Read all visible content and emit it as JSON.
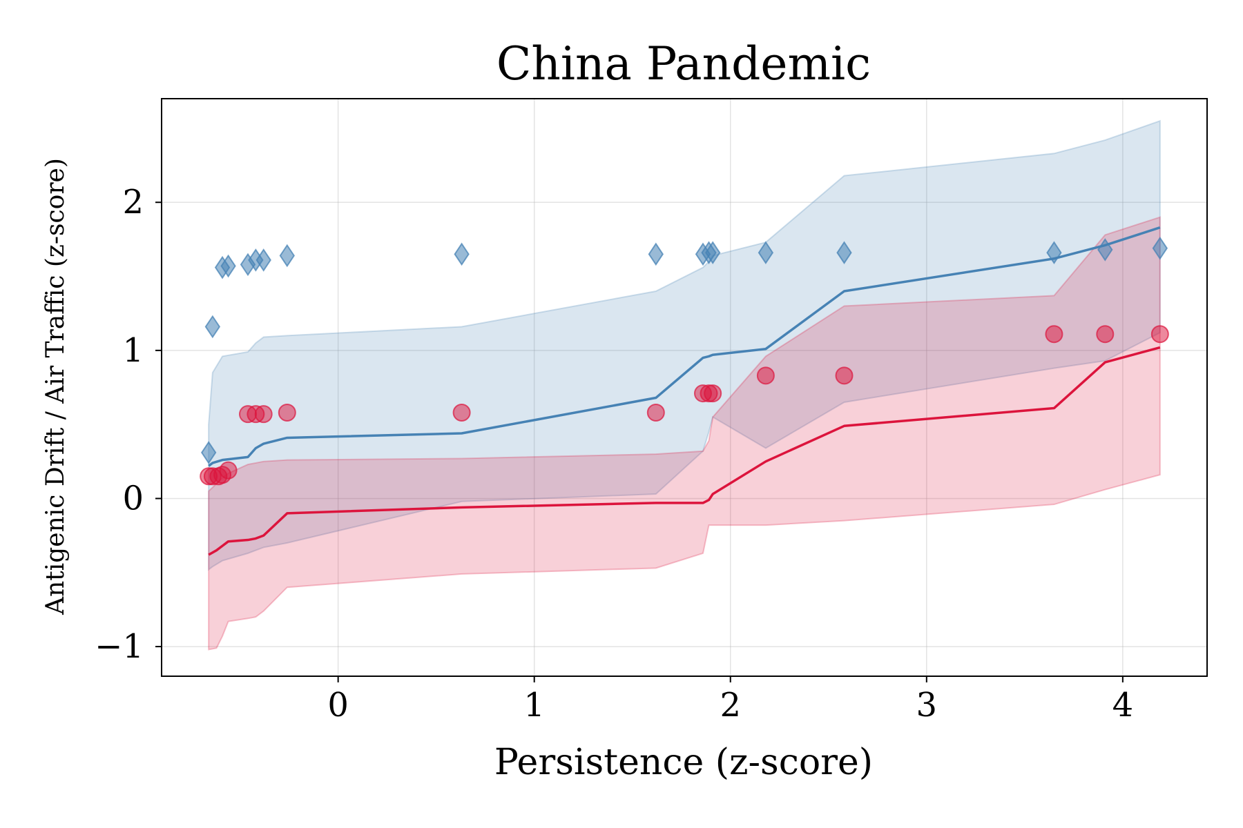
{
  "chart_data": {
    "type": "line",
    "title": "China Pandemic",
    "xlabel": "Persistence (z-score)",
    "ylabel": "Antigenic Drift / Air Traffic (z-score)",
    "xlim": [
      -0.9,
      4.43
    ],
    "ylim": [
      -1.2,
      2.7
    ],
    "grid": true,
    "x_ticks": [
      0,
      1,
      2,
      3,
      4
    ],
    "y_ticks": [
      -1,
      0,
      1,
      2
    ],
    "x_tick_labels": [
      "0",
      "1",
      "2",
      "3",
      "4"
    ],
    "y_tick_labels": [
      "−1",
      "0",
      "1",
      "2"
    ],
    "series": [
      {
        "name": "Antigenic Drift",
        "color": "#4682b4",
        "marker": "diamond",
        "points_x": [
          -0.66,
          -0.64,
          -0.59,
          -0.56,
          -0.46,
          -0.42,
          -0.38,
          -0.26,
          0.63,
          1.62,
          1.86,
          1.89,
          1.91,
          2.18,
          2.58,
          3.65,
          3.91,
          4.19
        ],
        "points_y": [
          0.31,
          1.16,
          1.56,
          1.57,
          1.58,
          1.61,
          1.61,
          1.64,
          1.65,
          1.65,
          1.65,
          1.66,
          1.66,
          1.66,
          1.66,
          1.66,
          1.68,
          1.69
        ],
        "fit_x": [
          -0.66,
          -0.64,
          -0.59,
          -0.46,
          -0.42,
          -0.38,
          -0.26,
          0.63,
          1.62,
          1.86,
          1.89,
          1.91,
          2.18,
          2.58,
          3.65,
          3.91,
          4.19
        ],
        "fit_y": [
          0.22,
          0.24,
          0.26,
          0.28,
          0.34,
          0.37,
          0.41,
          0.44,
          0.68,
          0.95,
          0.96,
          0.97,
          1.01,
          1.4,
          1.62,
          1.71,
          1.83
        ],
        "band_lower": [
          -0.48,
          -0.46,
          -0.42,
          -0.37,
          -0.35,
          -0.33,
          -0.3,
          -0.02,
          0.03,
          0.32,
          0.45,
          0.55,
          0.34,
          0.65,
          0.88,
          0.93,
          1.12
        ],
        "band_upper": [
          0.5,
          0.85,
          0.96,
          0.99,
          1.05,
          1.09,
          1.1,
          1.16,
          1.4,
          1.56,
          1.6,
          1.64,
          1.73,
          2.18,
          2.33,
          2.42,
          2.55
        ]
      },
      {
        "name": "Air Traffic",
        "color": "#dc143c",
        "marker": "circle",
        "points_x": [
          -0.66,
          -0.64,
          -0.61,
          -0.59,
          -0.56,
          -0.46,
          -0.42,
          -0.38,
          -0.26,
          0.63,
          1.62,
          1.86,
          1.89,
          1.91,
          2.18,
          2.58,
          3.65,
          3.91,
          4.19
        ],
        "points_y": [
          0.15,
          0.15,
          0.15,
          0.16,
          0.19,
          0.57,
          0.57,
          0.57,
          0.58,
          0.58,
          0.58,
          0.71,
          0.71,
          0.71,
          0.83,
          0.83,
          1.11,
          1.11,
          1.11
        ],
        "fit_x": [
          -0.66,
          -0.62,
          -0.59,
          -0.56,
          -0.46,
          -0.42,
          -0.38,
          -0.26,
          0.63,
          1.62,
          1.86,
          1.89,
          1.91,
          2.18,
          2.58,
          3.65,
          3.91,
          4.19
        ],
        "fit_y": [
          -0.38,
          -0.35,
          -0.32,
          -0.29,
          -0.28,
          -0.27,
          -0.25,
          -0.1,
          -0.06,
          -0.03,
          -0.03,
          -0.01,
          0.03,
          0.25,
          0.49,
          0.61,
          0.92,
          1.02
        ],
        "band_lower": [
          -1.02,
          -1.01,
          -0.93,
          -0.83,
          -0.81,
          -0.8,
          -0.76,
          -0.6,
          -0.51,
          -0.47,
          -0.37,
          -0.18,
          -0.18,
          -0.18,
          -0.15,
          -0.04,
          0.06,
          0.16
        ],
        "band_upper": [
          0.05,
          0.1,
          0.14,
          0.17,
          0.23,
          0.24,
          0.25,
          0.26,
          0.27,
          0.3,
          0.32,
          0.39,
          0.55,
          0.96,
          1.3,
          1.37,
          1.78,
          1.9
        ]
      }
    ]
  }
}
